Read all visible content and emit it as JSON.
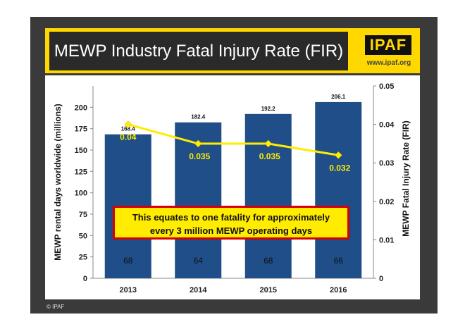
{
  "header": {
    "title": "MEWP Industry Fatal Injury Rate (FIR)",
    "logo_text": "IPAF",
    "url": "www.ipaf.org"
  },
  "footer": {
    "copyright": "© IPAF"
  },
  "callout": {
    "line1": "This equates to one fatality for approximately",
    "line2": "every 3 million MEWP operating days"
  },
  "colors": {
    "bar": "#1f4e89",
    "line": "#ffec00",
    "header": "#ffd800"
  },
  "chart_data": {
    "type": "bar",
    "categories": [
      "2013",
      "2014",
      "2015",
      "2016"
    ],
    "series": [
      {
        "values": [
          168.4,
          182.4,
          192.2,
          206.1
        ],
        "value_labels": [
          "168.4",
          "182.4",
          "192.2",
          "206.1"
        ],
        "inner_labels": [
          "68",
          "64",
          "68",
          "66"
        ]
      },
      {
        "type": "line",
        "axis": "right",
        "values": [
          0.04,
          0.035,
          0.035,
          0.032
        ],
        "value_labels": [
          "0.04",
          "0.035",
          "0.035",
          "0.032"
        ]
      }
    ],
    "ylabel": "MEWP rental days worldwide (millions)",
    "y2label": "MEWP Fatal Injury Rate (FIR)",
    "ylim": [
      0,
      225
    ],
    "y2lim": [
      0,
      0.05
    ],
    "yticks": [
      "0",
      "25",
      "50",
      "75",
      "100",
      "125",
      "150",
      "175",
      "200"
    ],
    "y2ticks": [
      "0",
      "0.01",
      "0.02",
      "0.03",
      "0.04",
      "0.05"
    ],
    "grid": false,
    "legend": "none"
  }
}
